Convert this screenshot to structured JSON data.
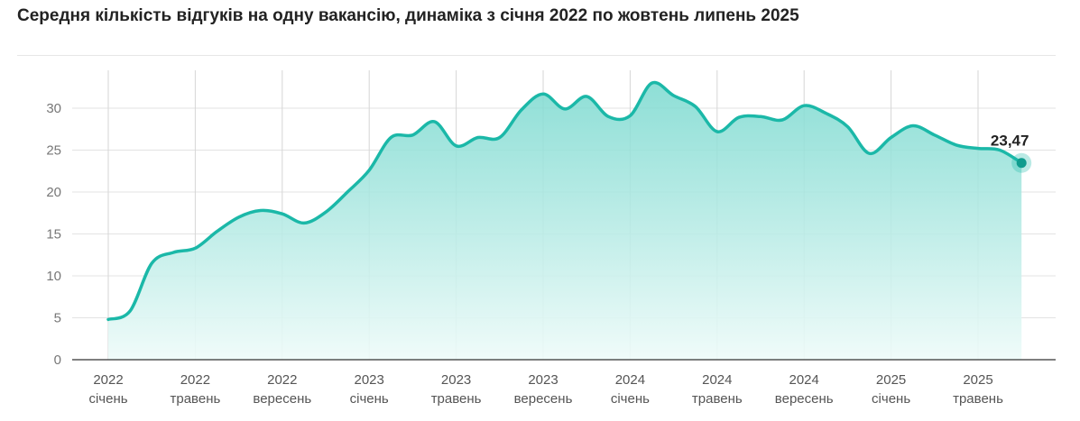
{
  "title": "Середня кількість відгуків на одну вакансію, динаміка з січня 2022 по жовтень липень 2025",
  "colors": {
    "line": "#1bb8a8",
    "fill_top": "#7ad9cf",
    "fill_bottom": "#eefbf9",
    "grid": "#e3e3e3",
    "vgrid": "#d6d6d6"
  },
  "chart_data": {
    "type": "area",
    "title": "Середня кількість відгуків на одну вакансію, динаміка з січня 2022 по жовтень липень 2025",
    "xlabel": "",
    "ylabel": "",
    "ylim": [
      0,
      33.5
    ],
    "yticks": [
      0,
      5,
      10,
      15,
      20,
      25,
      30
    ],
    "grid": true,
    "x_tick_labels": [
      {
        "year": "2022",
        "month": "січень"
      },
      {
        "year": "2022",
        "month": "травень"
      },
      {
        "year": "2022",
        "month": "вересень"
      },
      {
        "year": "2023",
        "month": "січень"
      },
      {
        "year": "2023",
        "month": "травень"
      },
      {
        "year": "2023",
        "month": "вересень"
      },
      {
        "year": "2024",
        "month": "січень"
      },
      {
        "year": "2024",
        "month": "травень"
      },
      {
        "year": "2024",
        "month": "вересень"
      },
      {
        "year": "2025",
        "month": "січень"
      },
      {
        "year": "2025",
        "month": "травень"
      }
    ],
    "x": [
      "2022-01",
      "2022-02",
      "2022-03",
      "2022-04",
      "2022-05",
      "2022-06",
      "2022-07",
      "2022-08",
      "2022-09",
      "2022-10",
      "2022-11",
      "2022-12",
      "2023-01",
      "2023-02",
      "2023-03",
      "2023-04",
      "2023-05",
      "2023-06",
      "2023-07",
      "2023-08",
      "2023-09",
      "2023-10",
      "2023-11",
      "2023-12",
      "2024-01",
      "2024-02",
      "2024-03",
      "2024-04",
      "2024-05",
      "2024-06",
      "2024-07",
      "2024-08",
      "2024-09",
      "2024-10",
      "2024-11",
      "2024-12",
      "2025-01",
      "2025-02",
      "2025-03",
      "2025-04",
      "2025-05",
      "2025-06",
      "2025-07"
    ],
    "values": [
      4.8,
      5.8,
      11.5,
      12.8,
      13.3,
      15.3,
      17.0,
      17.8,
      17.4,
      16.3,
      17.6,
      20.0,
      22.6,
      26.5,
      26.8,
      28.4,
      25.5,
      26.5,
      26.5,
      29.8,
      31.7,
      29.9,
      31.4,
      29.0,
      29.1,
      33.0,
      31.5,
      30.2,
      27.2,
      28.9,
      29.0,
      28.6,
      30.3,
      29.4,
      27.8,
      24.6,
      26.5,
      27.9,
      26.8,
      25.6,
      25.2,
      25.0,
      23.47
    ],
    "last_value_label": "23,47"
  }
}
